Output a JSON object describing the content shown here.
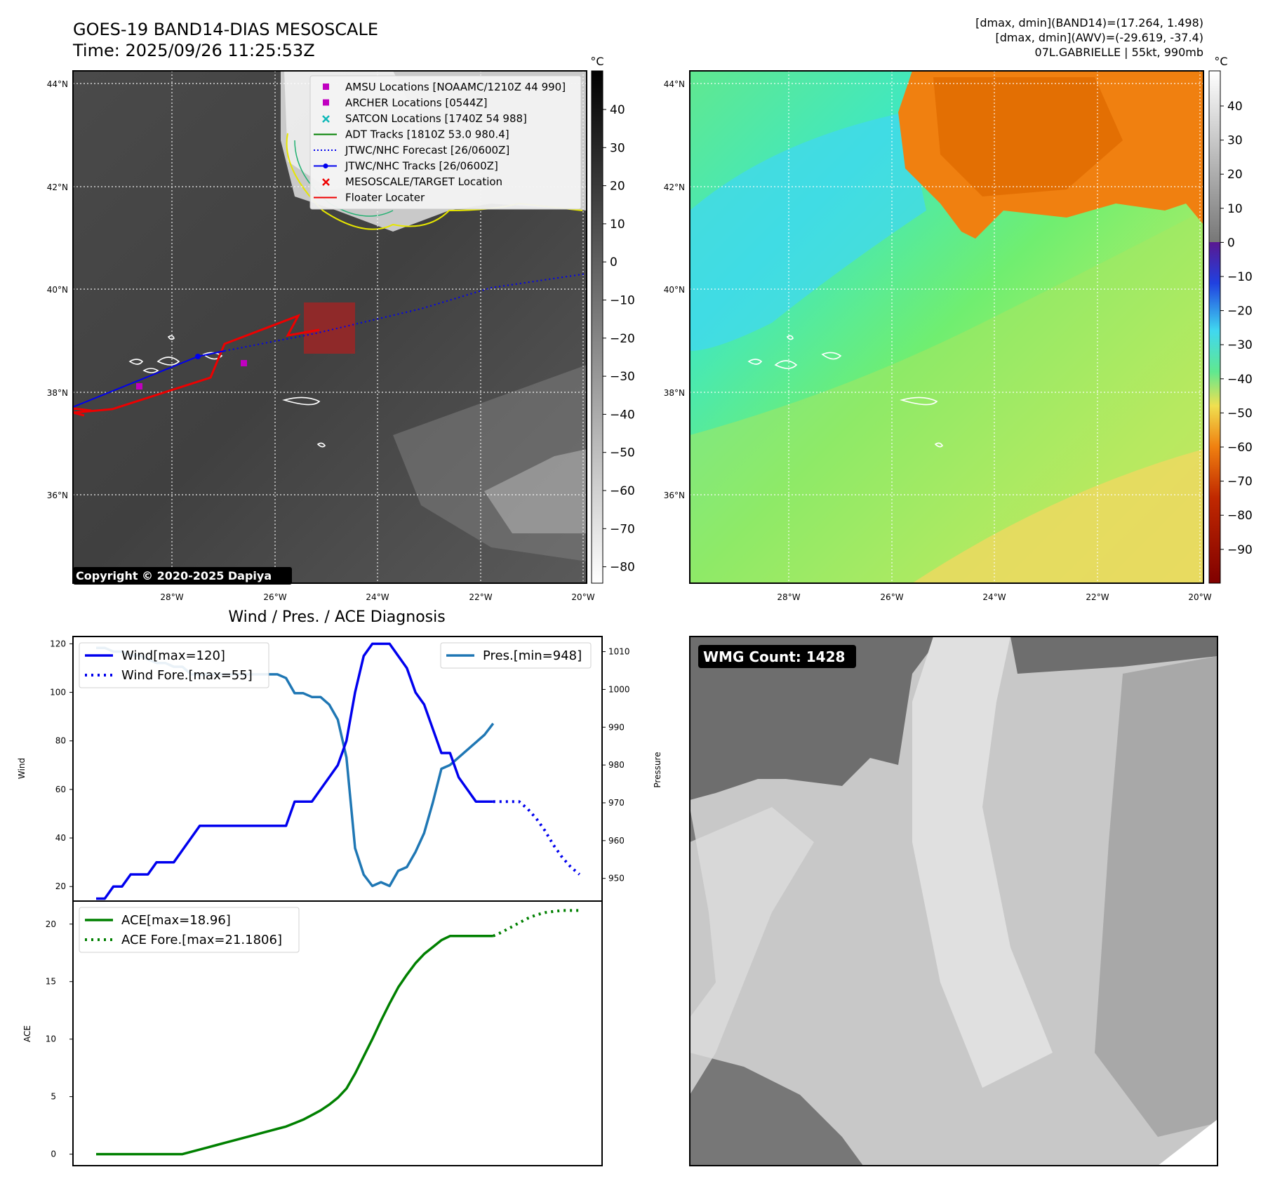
{
  "title": {
    "line1": "GOES-19 BAND14-DIAS MESOSCALE",
    "line2": "Time: 2025/09/26 11:25:53Z"
  },
  "info": {
    "line1": "[dmax, dmin](BAND14)=(17.264, 1.498)",
    "line2": "[dmax, dmin](AWV)=(-29.619, -37.4)",
    "line3": "07L.GABRIELLE | 55kt, 990mb"
  },
  "map": {
    "lat_labels": [
      "44°N",
      "42°N",
      "40°N",
      "38°N",
      "36°N"
    ],
    "lon_labels": [
      "28°W",
      "26°W",
      "24°W",
      "22°W",
      "20°W"
    ],
    "copyright": "Copyright © 2020-2025 Dapiya"
  },
  "legend": [
    {
      "label": "AMSU Locations [NOAAMC/1210Z 44 990]",
      "color": "#c000c0",
      "marker": "square"
    },
    {
      "label": "ARCHER Locations [0544Z]",
      "color": "#c000c0",
      "marker": "square"
    },
    {
      "label": "SATCON Locations [1740Z 54 988]",
      "color": "#10b8b8",
      "marker": "x"
    },
    {
      "label": "ADT Tracks [1810Z 53.0 980.4]",
      "color": "#008000",
      "marker": "line"
    },
    {
      "label": "JTWC/NHC Forecast [26/0600Z]",
      "color": "#0000ee",
      "marker": "dotted"
    },
    {
      "label": "JTWC/NHC Tracks [26/0600Z]",
      "color": "#0000ee",
      "marker": "line-dot"
    },
    {
      "label": "MESOSCALE/TARGET Location",
      "color": "#ee0000",
      "marker": "x"
    },
    {
      "label": "Floater Locater",
      "color": "#ee0000",
      "marker": "line"
    }
  ],
  "cbar_left": {
    "unit": "°C",
    "ticks": [
      "40",
      "30",
      "20",
      "10",
      "0",
      "−10",
      "−20",
      "−30",
      "−40",
      "−50",
      "−60",
      "−70",
      "−80"
    ]
  },
  "cbar_right": {
    "unit": "°C",
    "ticks": [
      "40",
      "30",
      "20",
      "10",
      "0",
      "−10",
      "−20",
      "−30",
      "−40",
      "−50",
      "−60",
      "−70",
      "−80",
      "−90"
    ]
  },
  "wmg": {
    "label": "WMG Count: 1428"
  },
  "colors": {
    "wind": "#0000ee",
    "pres": "#1f77b4",
    "ace": "#008000",
    "track": "#0000ee",
    "floater": "#ee0000"
  },
  "chart_data": [
    {
      "type": "line",
      "title": "Wind / Pres. / ACE Diagnosis",
      "ylabel": "Wind",
      "y2label": "Pressure",
      "ylim": [
        14,
        123
      ],
      "y2lim": [
        944,
        1014
      ],
      "yticks": [
        "20",
        "40",
        "60",
        "80",
        "100",
        "120"
      ],
      "y2ticks": [
        "950",
        "960",
        "970",
        "980",
        "990",
        "1000",
        "1010"
      ],
      "series": [
        {
          "name": "Wind[max=120]",
          "axis": "left",
          "style": "solid",
          "x": [
            0,
            1,
            2,
            3,
            4,
            5,
            6,
            7,
            8,
            9,
            10,
            11,
            12,
            13,
            14,
            15,
            16,
            17,
            18,
            19,
            20,
            21,
            22,
            23,
            24,
            25,
            26,
            27,
            28,
            29,
            30,
            31,
            32,
            33,
            34,
            35,
            36,
            37,
            38,
            39,
            40,
            41,
            42,
            43,
            44,
            45,
            46
          ],
          "values": [
            15,
            15,
            20,
            20,
            25,
            25,
            25,
            30,
            30,
            30,
            35,
            40,
            45,
            45,
            45,
            45,
            45,
            45,
            45,
            45,
            45,
            45,
            45,
            55,
            55,
            55,
            60,
            65,
            70,
            80,
            100,
            115,
            120,
            120,
            120,
            115,
            110,
            100,
            95,
            85,
            75,
            75,
            65,
            60,
            55,
            55,
            55
          ]
        },
        {
          "name": "Wind Fore.[max=55]",
          "axis": "left",
          "style": "dotted",
          "x": [
            46,
            47,
            48,
            49,
            50,
            51,
            52,
            53,
            54,
            55,
            56
          ],
          "values": [
            55,
            55,
            55,
            55,
            52,
            48,
            43,
            37,
            32,
            28,
            25
          ]
        },
        {
          "name": "Pres.[min=948]",
          "axis": "right",
          "style": "solid",
          "x": [
            0,
            1,
            2,
            3,
            4,
            5,
            6,
            7,
            8,
            9,
            10,
            11,
            12,
            13,
            14,
            15,
            16,
            17,
            18,
            19,
            20,
            21,
            22,
            23,
            24,
            25,
            26,
            27,
            28,
            29,
            30,
            31,
            32,
            33,
            34,
            35,
            36,
            37,
            38,
            39,
            40,
            41,
            42,
            43,
            44,
            45,
            46
          ],
          "values": [
            1011,
            1011,
            1010,
            1010,
            1009,
            1009,
            1008,
            1007,
            1007,
            1006,
            1006,
            1004,
            1004,
            1004,
            1004,
            1004,
            1004,
            1004,
            1004,
            1004,
            1004,
            1004,
            1003,
            999,
            999,
            998,
            998,
            996,
            992,
            982,
            958,
            951,
            948,
            949,
            948,
            952,
            953,
            957,
            962,
            970,
            979,
            980,
            982,
            984,
            986,
            988,
            991
          ]
        }
      ]
    },
    {
      "type": "line",
      "ylabel": "ACE",
      "ylim": [
        -1,
        22
      ],
      "yticks": [
        "0",
        "5",
        "10",
        "15",
        "20"
      ],
      "series": [
        {
          "name": "ACE[max=18.96]",
          "style": "solid",
          "x": [
            0,
            1,
            2,
            3,
            4,
            5,
            6,
            7,
            8,
            9,
            10,
            11,
            12,
            13,
            14,
            15,
            16,
            17,
            18,
            19,
            20,
            21,
            22,
            23,
            24,
            25,
            26,
            27,
            28,
            29,
            30,
            31,
            32,
            33,
            34,
            35,
            36,
            37,
            38,
            39,
            40,
            41,
            42,
            43,
            44,
            45,
            46
          ],
          "values": [
            0,
            0,
            0,
            0,
            0,
            0,
            0,
            0,
            0,
            0,
            0,
            0.2,
            0.4,
            0.6,
            0.8,
            1.0,
            1.2,
            1.4,
            1.6,
            1.8,
            2.0,
            2.2,
            2.4,
            2.7,
            3.0,
            3.4,
            3.8,
            4.3,
            4.9,
            5.7,
            7.0,
            8.5,
            10.0,
            11.6,
            13.1,
            14.5,
            15.6,
            16.6,
            17.4,
            18.0,
            18.6,
            18.96,
            18.96,
            18.96,
            18.96,
            18.96,
            18.96
          ]
        },
        {
          "name": "ACE Fore.[max=21.1806]",
          "style": "dotted",
          "x": [
            46,
            47,
            48,
            49,
            50,
            51,
            52,
            53,
            54,
            55,
            56
          ],
          "values": [
            18.96,
            19.3,
            19.7,
            20.1,
            20.5,
            20.8,
            21.0,
            21.1,
            21.18,
            21.18,
            21.18
          ]
        }
      ]
    }
  ]
}
